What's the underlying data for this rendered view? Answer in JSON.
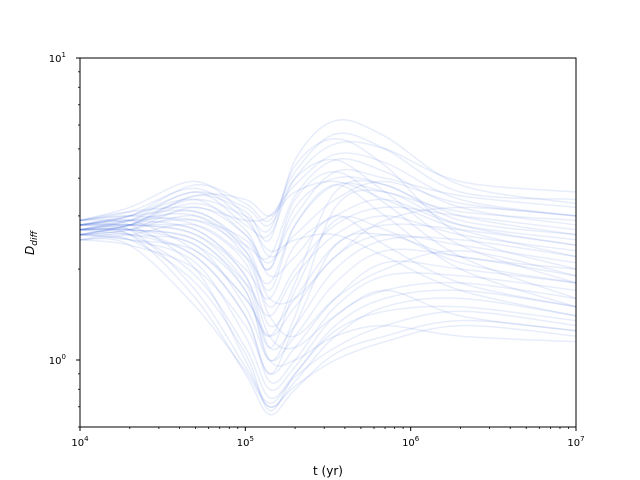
{
  "chart_data": {
    "type": "line",
    "title": "",
    "xlabel": "t (yr)",
    "ylabel_main": "D",
    "ylabel_sub": "diff",
    "x_scale": "log",
    "y_scale": "log",
    "xlim": [
      10000,
      10000000
    ],
    "ylim": [
      0.6,
      10
    ],
    "grid": false,
    "legend": "none",
    "line_color": "#4169e1",
    "line_opacity": 0.12,
    "x_ticks": [
      {
        "value": 10000,
        "base": "10",
        "exp": "4"
      },
      {
        "value": 100000,
        "base": "10",
        "exp": "5"
      },
      {
        "value": 1000000,
        "base": "10",
        "exp": "6"
      },
      {
        "value": 10000000,
        "base": "10",
        "exp": "7"
      }
    ],
    "y_ticks": [
      {
        "value": 1,
        "base": "10",
        "exp": "0"
      },
      {
        "value": 10,
        "base": "10",
        "exp": "1"
      }
    ],
    "x": [
      10000,
      20000,
      50000,
      100000,
      140000,
      200000,
      350000,
      700000,
      2000000,
      10000000
    ],
    "series": [
      {
        "values": [
          2.6,
          2.8,
          3.5,
          3.1,
          2.5,
          4.6,
          6.2,
          5.5,
          3.8,
          3.3
        ]
      },
      {
        "values": [
          2.8,
          3.0,
          3.8,
          3.3,
          2.9,
          4.2,
          5.6,
          5.0,
          3.6,
          3.4
        ]
      },
      {
        "values": [
          2.7,
          2.9,
          3.6,
          2.8,
          2.6,
          4.0,
          5.2,
          5.0,
          3.9,
          3.6
        ]
      },
      {
        "values": [
          2.9,
          3.1,
          3.2,
          2.9,
          3.0,
          3.8,
          4.8,
          4.5,
          3.4,
          3.0
        ]
      },
      {
        "values": [
          2.6,
          2.7,
          3.0,
          2.4,
          2.2,
          3.5,
          4.6,
          4.2,
          3.2,
          2.8
        ]
      },
      {
        "values": [
          2.8,
          3.0,
          3.4,
          2.6,
          2.1,
          3.0,
          4.2,
          4.0,
          3.5,
          3.2
        ]
      },
      {
        "values": [
          2.7,
          2.8,
          2.9,
          2.5,
          2.0,
          3.2,
          4.0,
          3.8,
          3.0,
          2.6
        ]
      },
      {
        "values": [
          2.5,
          2.6,
          2.8,
          2.2,
          1.8,
          2.8,
          3.8,
          3.6,
          3.1,
          2.9
        ]
      },
      {
        "values": [
          2.9,
          3.2,
          3.9,
          3.0,
          2.2,
          2.6,
          3.4,
          3.9,
          3.3,
          3.0
        ]
      },
      {
        "values": [
          2.8,
          2.9,
          2.7,
          2.0,
          1.6,
          2.4,
          3.0,
          3.4,
          2.8,
          2.5
        ]
      },
      {
        "values": [
          2.6,
          2.8,
          3.1,
          2.3,
          1.5,
          2.0,
          2.8,
          3.2,
          3.0,
          2.7
        ]
      },
      {
        "values": [
          2.7,
          2.7,
          2.5,
          1.8,
          1.4,
          1.9,
          2.6,
          3.0,
          2.6,
          2.3
        ]
      },
      {
        "values": [
          2.9,
          3.0,
          2.8,
          2.1,
          1.3,
          1.6,
          2.4,
          2.8,
          2.7,
          2.4
        ]
      },
      {
        "values": [
          2.6,
          2.5,
          2.3,
          1.6,
          1.2,
          1.5,
          2.2,
          2.6,
          2.4,
          2.1
        ]
      },
      {
        "values": [
          2.8,
          2.8,
          2.6,
          1.9,
          1.1,
          1.3,
          2.0,
          2.5,
          2.5,
          2.2
        ]
      },
      {
        "values": [
          2.7,
          2.6,
          2.4,
          1.5,
          1.0,
          1.2,
          1.8,
          2.3,
          2.2,
          1.9
        ]
      },
      {
        "values": [
          2.5,
          2.4,
          2.0,
          1.3,
          0.9,
          1.1,
          1.6,
          2.1,
          2.0,
          1.8
        ]
      },
      {
        "values": [
          2.8,
          2.7,
          2.2,
          1.4,
          0.85,
          1.0,
          1.5,
          1.9,
          1.9,
          1.7
        ]
      },
      {
        "values": [
          2.6,
          2.5,
          2.1,
          1.2,
          0.8,
          0.95,
          1.4,
          1.7,
          1.8,
          1.6
        ]
      },
      {
        "values": [
          2.7,
          2.6,
          1.9,
          1.1,
          0.75,
          0.9,
          1.3,
          1.6,
          1.7,
          1.5
        ]
      },
      {
        "values": [
          2.9,
          2.8,
          2.0,
          1.0,
          0.7,
          0.85,
          1.2,
          1.5,
          1.6,
          1.4
        ]
      },
      {
        "values": [
          2.6,
          2.5,
          1.8,
          1.05,
          0.68,
          0.9,
          1.25,
          1.45,
          1.5,
          1.35
        ]
      },
      {
        "values": [
          2.8,
          2.7,
          1.7,
          0.95,
          0.72,
          0.88,
          1.1,
          1.3,
          1.45,
          1.3
        ]
      },
      {
        "values": [
          2.7,
          2.6,
          1.6,
          0.9,
          0.66,
          0.8,
          1.05,
          1.2,
          1.35,
          1.25
        ]
      },
      {
        "values": [
          2.5,
          2.4,
          1.5,
          0.92,
          0.7,
          0.82,
          1.0,
          1.15,
          1.3,
          1.2
        ]
      },
      {
        "values": [
          2.8,
          2.9,
          2.3,
          1.6,
          1.2,
          1.8,
          3.6,
          3.8,
          2.9,
          2.6
        ]
      },
      {
        "values": [
          2.7,
          2.7,
          2.5,
          1.7,
          1.0,
          1.4,
          3.2,
          3.6,
          2.8,
          2.4
        ]
      },
      {
        "values": [
          2.6,
          2.8,
          3.3,
          2.7,
          1.9,
          2.2,
          3.0,
          2.4,
          1.8,
          1.5
        ]
      },
      {
        "values": [
          2.9,
          3.1,
          3.7,
          2.9,
          2.3,
          2.5,
          2.6,
          2.2,
          1.7,
          1.4
        ]
      },
      {
        "values": [
          2.7,
          2.9,
          3.0,
          2.2,
          1.4,
          1.2,
          1.6,
          2.0,
          2.3,
          1.9
        ]
      },
      {
        "values": [
          2.8,
          2.8,
          2.7,
          1.9,
          1.2,
          1.1,
          1.4,
          1.7,
          1.4,
          1.25
        ]
      },
      {
        "values": [
          2.6,
          2.7,
          2.4,
          1.7,
          1.0,
          1.0,
          1.2,
          1.3,
          1.2,
          1.15
        ]
      },
      {
        "values": [
          2.7,
          2.9,
          3.4,
          3.0,
          2.7,
          4.4,
          5.4,
          4.4,
          2.6,
          2.0
        ]
      },
      {
        "values": [
          2.8,
          3.0,
          3.6,
          3.2,
          2.8,
          4.0,
          4.6,
          3.6,
          2.4,
          1.8
        ]
      },
      {
        "values": [
          2.6,
          2.7,
          3.2,
          2.6,
          2.0,
          3.4,
          4.2,
          3.3,
          2.2,
          1.6
        ]
      },
      {
        "values": [
          2.9,
          3.0,
          3.1,
          2.4,
          1.7,
          2.8,
          3.8,
          3.0,
          2.0,
          1.5
        ]
      },
      {
        "values": [
          2.7,
          2.8,
          2.6,
          1.8,
          1.1,
          1.7,
          2.9,
          2.7,
          2.1,
          1.8
        ]
      },
      {
        "values": [
          2.5,
          2.6,
          2.2,
          1.4,
          0.9,
          1.3,
          2.4,
          2.6,
          2.2,
          2.0
        ]
      },
      {
        "values": [
          2.8,
          2.9,
          2.9,
          2.3,
          1.6,
          1.6,
          2.2,
          2.9,
          3.2,
          3.0
        ]
      },
      {
        "values": [
          2.7,
          2.8,
          3.5,
          3.4,
          3.0,
          3.6,
          3.9,
          3.4,
          2.7,
          2.2
        ]
      }
    ]
  }
}
